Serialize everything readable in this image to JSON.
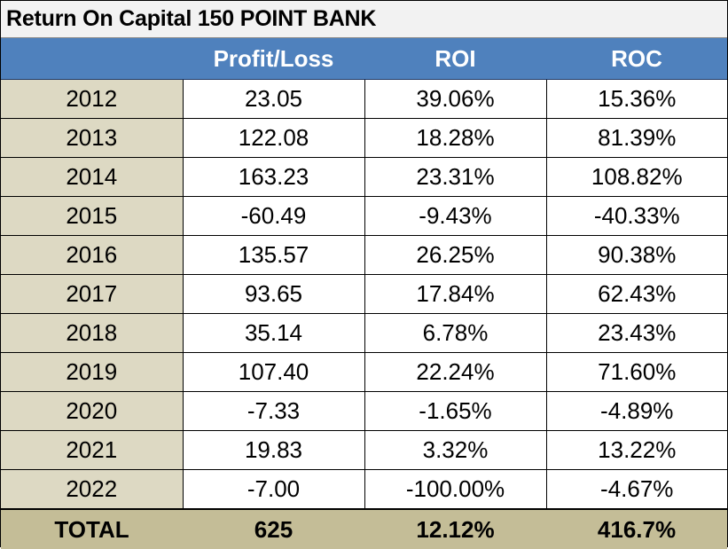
{
  "title": "Return On Capital 150 POINT BANK",
  "columns": [
    "",
    "Profit/Loss",
    "ROI",
    "ROC"
  ],
  "rows": [
    {
      "year": "2012",
      "profit_loss": "23.05",
      "roi": "39.06%",
      "roc": "15.36%"
    },
    {
      "year": "2013",
      "profit_loss": "122.08",
      "roi": "18.28%",
      "roc": "81.39%"
    },
    {
      "year": "2014",
      "profit_loss": "163.23",
      "roi": "23.31%",
      "roc": "108.82%"
    },
    {
      "year": "2015",
      "profit_loss": "-60.49",
      "roi": "-9.43%",
      "roc": "-40.33%"
    },
    {
      "year": "2016",
      "profit_loss": "135.57",
      "roi": "26.25%",
      "roc": "90.38%"
    },
    {
      "year": "2017",
      "profit_loss": "93.65",
      "roi": "17.84%",
      "roc": "62.43%"
    },
    {
      "year": "2018",
      "profit_loss": "35.14",
      "roi": "6.78%",
      "roc": "23.43%"
    },
    {
      "year": "2019",
      "profit_loss": "107.40",
      "roi": "22.24%",
      "roc": "71.60%"
    },
    {
      "year": "2020",
      "profit_loss": "-7.33",
      "roi": "-1.65%",
      "roc": "-4.89%"
    },
    {
      "year": "2021",
      "profit_loss": "19.83",
      "roi": "3.32%",
      "roc": "13.22%"
    },
    {
      "year": "2022",
      "profit_loss": "-7.00",
      "roi": "-100.00%",
      "roc": "-4.67%"
    }
  ],
  "total": {
    "label": "TOTAL",
    "profit_loss": "625",
    "roi": "12.12%",
    "roc": "416.7%"
  },
  "colors": {
    "header_bg": "#4f81bd",
    "year_bg": "#ddd9c3",
    "total_bg": "#c4bd97",
    "title_bg": "#f2f2f2"
  }
}
